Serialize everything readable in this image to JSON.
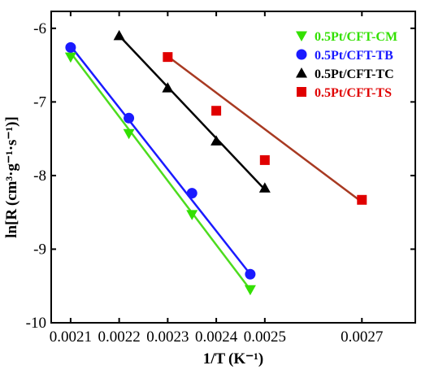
{
  "chart_data": {
    "type": "scatter",
    "xlabel": "1/T (K⁻¹)",
    "ylabel": "ln[R (cm³·g⁻¹·s⁻¹)]",
    "xlim": [
      0.00206,
      0.00281
    ],
    "ylim": [
      -10,
      -5.77
    ],
    "xticks": [
      {
        "value": 0.0021,
        "label": "0.0021"
      },
      {
        "value": 0.0022,
        "label": "0.0022"
      },
      {
        "value": 0.0023,
        "label": "0.0023"
      },
      {
        "value": 0.0024,
        "label": "0.0024"
      },
      {
        "value": 0.0025,
        "label": "0.0025"
      },
      {
        "value": 0.0027,
        "label": "0.0027"
      }
    ],
    "yticks": [
      {
        "value": -10,
        "label": "-10"
      },
      {
        "value": -9,
        "label": "-9"
      },
      {
        "value": -8,
        "label": "-8"
      },
      {
        "value": -7,
        "label": "-7"
      },
      {
        "value": -6,
        "label": "-6"
      }
    ],
    "grid": false,
    "legend_position": "top-right",
    "series": [
      {
        "name": "0.5Pt/CFT-CM",
        "color": "#33e000",
        "line_color": "#4ddc1e",
        "marker": "triangle-down",
        "x": [
          0.0021,
          0.00222,
          0.00235,
          0.00247
        ],
        "y": [
          -6.39,
          -7.43,
          -8.53,
          -9.55
        ],
        "fit": {
          "x": [
            0.0021,
            0.00247
          ],
          "y": [
            -6.33,
            -9.55
          ]
        }
      },
      {
        "name": "0.5Pt/CFT-TB",
        "color": "#1a1aff",
        "line_color": "#1a1aff",
        "marker": "circle",
        "x": [
          0.0021,
          0.00222,
          0.00235,
          0.00247
        ],
        "y": [
          -6.26,
          -7.22,
          -8.24,
          -9.34
        ],
        "fit": {
          "x": [
            0.0021,
            0.00247
          ],
          "y": [
            -6.24,
            -9.34
          ]
        }
      },
      {
        "name": "0.5Pt/CFT-TC",
        "color": "#000000",
        "line_color": "#000000",
        "marker": "triangle-up",
        "x": [
          0.0022,
          0.0023,
          0.0024,
          0.0025
        ],
        "y": [
          -6.1,
          -6.81,
          -7.53,
          -8.17
        ],
        "fit": {
          "x": [
            0.0022,
            0.0025
          ],
          "y": [
            -6.1,
            -8.19
          ]
        }
      },
      {
        "name": "0.5Pt/CFT-TS",
        "color": "#e00000",
        "line_color": "#a83a22",
        "marker": "square",
        "x": [
          0.0023,
          0.0024,
          0.0025,
          0.0027
        ],
        "y": [
          -6.39,
          -7.12,
          -7.79,
          -8.33
        ],
        "fit": {
          "x": [
            0.0023,
            0.0027
          ],
          "y": [
            -6.38,
            -8.36
          ]
        }
      }
    ]
  }
}
